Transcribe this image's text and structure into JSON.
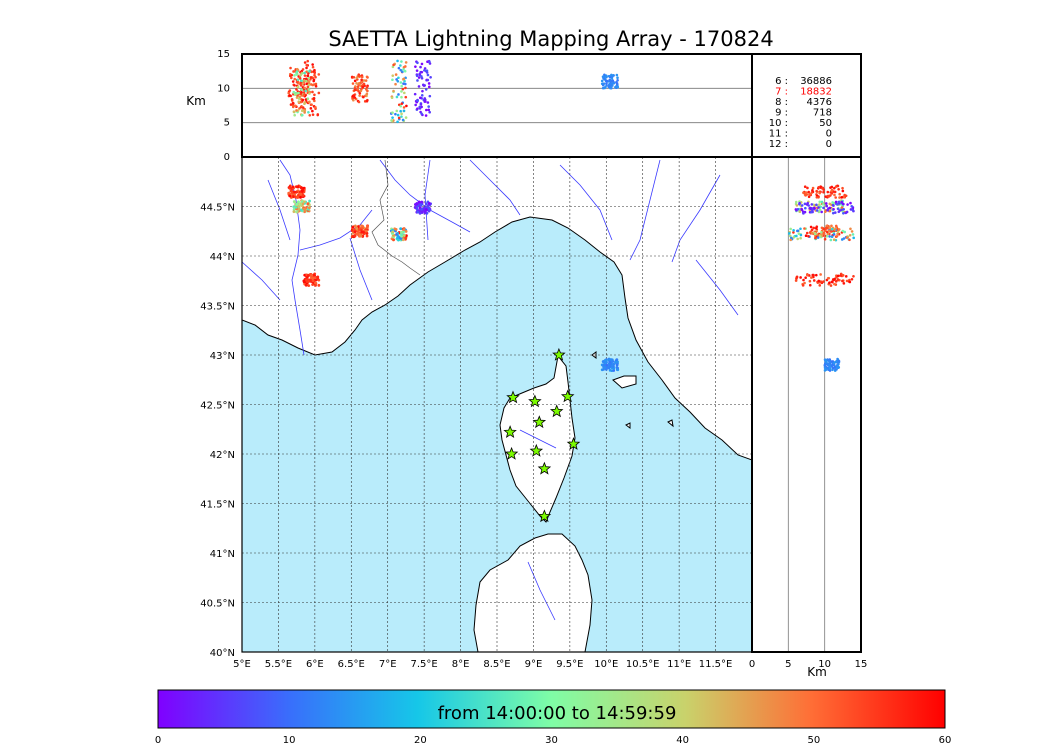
{
  "title": "SAETTA Lightning Mapping Array - 170824",
  "altitude_panel": {
    "ylabel": "Km",
    "ticks": [
      "0",
      "5",
      "10",
      "15"
    ]
  },
  "side_panel": {
    "xlabel": "Km",
    "ticks": [
      "0",
      "5",
      "10",
      "15"
    ]
  },
  "map": {
    "lon_ticks": [
      "5°E",
      "5.5°E",
      "6°E",
      "6.5°E",
      "7°E",
      "7.5°E",
      "8°E",
      "8.5°E",
      "9°E",
      "9.5°E",
      "10°E",
      "10.5°E",
      "11°E",
      "11.5°E"
    ],
    "lat_ticks": [
      "40°N",
      "40.5°N",
      "41°N",
      "41.5°N",
      "42°N",
      "42.5°N",
      "43°N",
      "43.5°N",
      "44°N",
      "44.5°N"
    ],
    "sea_color": "#b9ecfb",
    "land_color": "#ffffff",
    "river_color": "#3b3bff",
    "station_marker": "star",
    "station_color": "#7cfc00"
  },
  "station_counts": {
    "rows": [
      {
        "label": "6 :",
        "value": "36886",
        "highlight": false
      },
      {
        "label": "7 :",
        "value": "18832",
        "highlight": true
      },
      {
        "label": "8 :",
        "value": "4376",
        "highlight": false
      },
      {
        "label": "9 :",
        "value": "718",
        "highlight": false
      },
      {
        "label": "10 :",
        "value": "50",
        "highlight": false
      },
      {
        "label": "11 :",
        "value": "0",
        "highlight": false
      },
      {
        "label": "12 :",
        "value": "0",
        "highlight": false
      }
    ],
    "highlight_color": "#ff0000"
  },
  "colorbar": {
    "label": "from 14:00:00 to 14:59:59",
    "ticks": [
      "0",
      "10",
      "20",
      "30",
      "40",
      "50",
      "60"
    ],
    "colormap": "rainbow"
  },
  "chart_data": {
    "type": "scatter",
    "title": "SAETTA Lightning Mapping Array - 170824",
    "xlim": [
      5,
      12
    ],
    "ylim": [
      40,
      45
    ],
    "altitude_range_km": [
      0,
      15
    ],
    "color_scale": "time (minutes after 14:00:00)",
    "color_range": [
      0,
      60
    ],
    "stations": [
      {
        "lon": 9.35,
        "lat": 43.0
      },
      {
        "lon": 8.72,
        "lat": 42.57
      },
      {
        "lon": 9.02,
        "lat": 42.53
      },
      {
        "lon": 9.47,
        "lat": 42.58
      },
      {
        "lon": 9.32,
        "lat": 42.43
      },
      {
        "lon": 9.08,
        "lat": 42.32
      },
      {
        "lon": 8.68,
        "lat": 42.22
      },
      {
        "lon": 9.55,
        "lat": 42.1
      },
      {
        "lon": 8.7,
        "lat": 42.0
      },
      {
        "lon": 9.04,
        "lat": 42.03
      },
      {
        "lon": 9.15,
        "lat": 41.85
      },
      {
        "lon": 9.15,
        "lat": 41.37
      }
    ],
    "clusters": [
      {
        "lon": 5.95,
        "lat": 43.76,
        "alt": [
          6,
          14
        ],
        "time": [
          50,
          60
        ]
      },
      {
        "lon": 5.75,
        "lat": 44.65,
        "alt": [
          7,
          13
        ],
        "time": [
          50,
          60
        ]
      },
      {
        "lon": 5.82,
        "lat": 44.5,
        "alt": [
          6,
          13
        ],
        "time": [
          25,
          55
        ]
      },
      {
        "lon": 6.62,
        "lat": 44.25,
        "alt": [
          8,
          12
        ],
        "time": [
          45,
          60
        ]
      },
      {
        "lon": 7.15,
        "lat": 44.22,
        "alt": [
          5,
          14
        ],
        "time": [
          10,
          60
        ]
      },
      {
        "lon": 7.48,
        "lat": 44.49,
        "alt": [
          6,
          14
        ],
        "time": [
          0,
          8
        ]
      },
      {
        "lon": 10.05,
        "lat": 42.9,
        "alt": [
          10,
          12
        ],
        "time": [
          10,
          15
        ]
      }
    ],
    "station_counts": [
      {
        "stations": 6,
        "count": 36886
      },
      {
        "stations": 7,
        "count": 18832
      },
      {
        "stations": 8,
        "count": 4376
      },
      {
        "stations": 9,
        "count": 718
      },
      {
        "stations": 10,
        "count": 50
      },
      {
        "stations": 11,
        "count": 0
      },
      {
        "stations": 12,
        "count": 0
      }
    ]
  }
}
